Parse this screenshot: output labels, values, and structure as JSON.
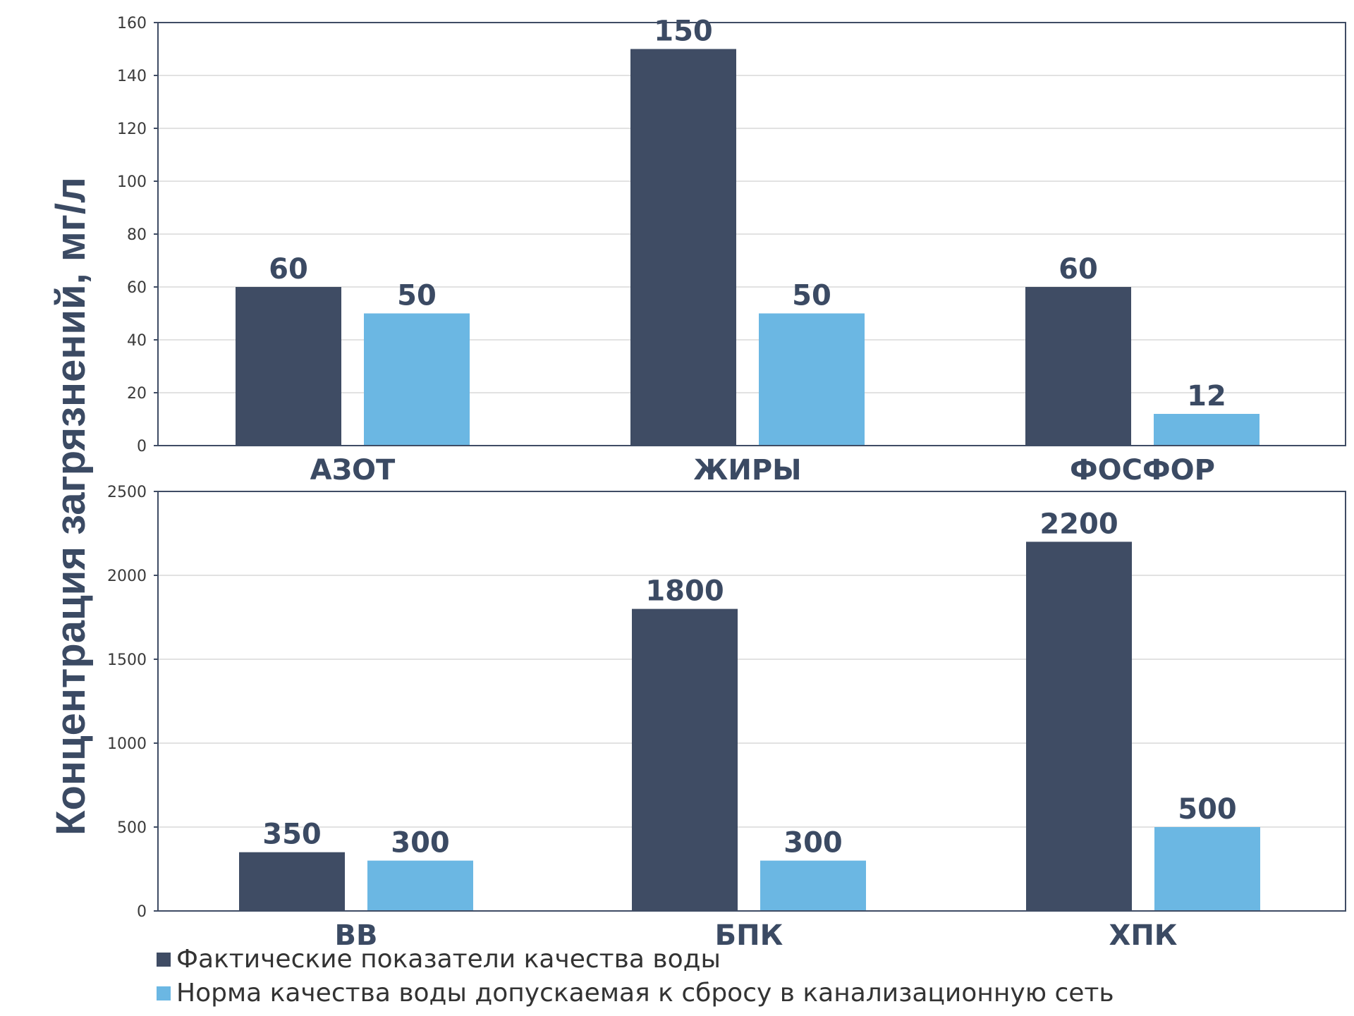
{
  "colors": {
    "actual": "#3f4c64",
    "norm": "#6bb7e3",
    "axis": "#3f4c64",
    "grid": "#d9d9d9"
  },
  "ylabel": "Концентрация загрязнений, мг/л",
  "legend": [
    {
      "name": "Фактические показатели качества воды",
      "color": "#3f4c64"
    },
    {
      "name": "Норма качества воды допускаемая к сбросу в канализационную сеть",
      "color": "#6bb7e3"
    }
  ],
  "chart_data": [
    {
      "type": "bar",
      "categories": [
        "АЗОТ",
        "ЖИРЫ",
        "ФОСФОР"
      ],
      "series": [
        {
          "name": "Фактические показатели качества воды",
          "values": [
            60,
            150,
            60
          ]
        },
        {
          "name": "Норма качества воды допускаемая к сбросу в канализационную сеть",
          "values": [
            50,
            50,
            12
          ]
        }
      ],
      "yticks": [
        "0",
        "20",
        "40",
        "60",
        "80",
        "100",
        "120",
        "140",
        "160"
      ],
      "ylim": [
        0,
        160
      ],
      "grid": true,
      "data_labels": true
    },
    {
      "type": "bar",
      "categories": [
        "ВВ",
        "БПК",
        "ХПК"
      ],
      "series": [
        {
          "name": "Фактические показатели качества воды",
          "values": [
            350,
            1800,
            2200
          ]
        },
        {
          "name": "Норма качества воды допускаемая к сбросу в канализационную сеть",
          "values": [
            300,
            300,
            500
          ]
        }
      ],
      "yticks": [
        "0",
        "500",
        "1000",
        "1500",
        "2000",
        "2500"
      ],
      "ylim": [
        0,
        2500
      ],
      "grid": true,
      "data_labels": true
    }
  ]
}
